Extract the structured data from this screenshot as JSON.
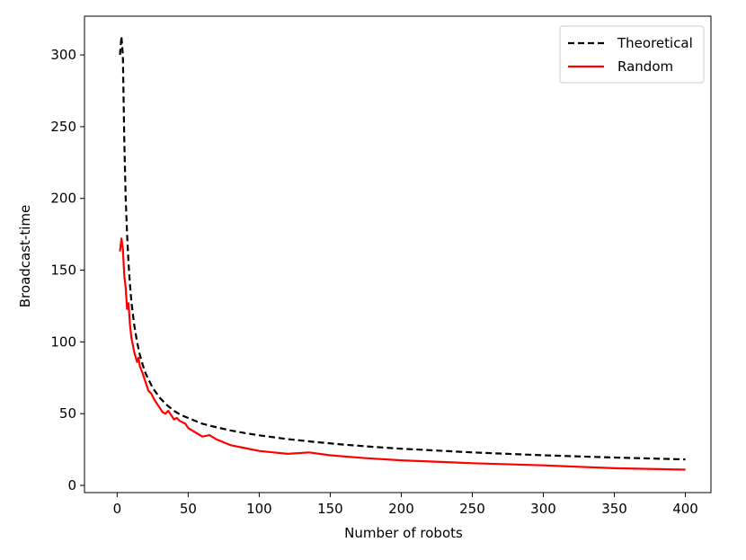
{
  "chart_data": {
    "type": "line",
    "xlabel": "Number of robots",
    "ylabel": "Broadcast-time",
    "xlim": [
      -23,
      418
    ],
    "ylim": [
      -5,
      327
    ],
    "xticks": [
      0,
      50,
      100,
      150,
      200,
      250,
      300,
      350,
      400
    ],
    "yticks": [
      0,
      50,
      100,
      150,
      200,
      250,
      300
    ],
    "grid": false,
    "legend_position": "top-right",
    "series": [
      {
        "name": "Theoretical",
        "color": "#000000",
        "style": "dashed",
        "x": [
          2,
          3,
          4,
          5,
          6,
          7,
          8,
          9,
          10,
          12,
          14,
          16,
          18,
          20,
          25,
          30,
          35,
          40,
          45,
          50,
          60,
          70,
          80,
          90,
          100,
          120,
          140,
          160,
          180,
          200,
          250,
          300,
          350,
          400
        ],
        "y": [
          300,
          313,
          300,
          240,
          201,
          175,
          155,
          140,
          128,
          112,
          100,
          91,
          84,
          78,
          68,
          61,
          56,
          52,
          49,
          47,
          43,
          40.5,
          38.3,
          36.5,
          34.9,
          32.3,
          30.2,
          28.4,
          26.9,
          25.6,
          23.0,
          21.0,
          19.4,
          18.1
        ]
      },
      {
        "name": "Random",
        "color": "#ff0000",
        "style": "solid",
        "x": [
          2,
          3,
          4,
          5,
          6,
          7,
          8,
          9,
          10,
          12,
          14,
          15,
          16,
          18,
          20,
          22,
          24,
          26,
          28,
          30,
          32,
          34,
          36,
          38,
          40,
          42,
          44,
          46,
          48,
          50,
          55,
          60,
          65,
          70,
          75,
          80,
          90,
          100,
          110,
          120,
          135,
          150,
          175,
          200,
          250,
          300,
          350,
          400
        ],
        "y": [
          163,
          172,
          165,
          146,
          138,
          123,
          127,
          112,
          103,
          93,
          86,
          89,
          83,
          78,
          72,
          66,
          64,
          60,
          57,
          54,
          51,
          50,
          52,
          49,
          46,
          47,
          45,
          44,
          43,
          40,
          37,
          34,
          35,
          32,
          30,
          28,
          26,
          24,
          23,
          22,
          23,
          21,
          19,
          17.5,
          15.5,
          14,
          12,
          11
        ]
      }
    ]
  }
}
